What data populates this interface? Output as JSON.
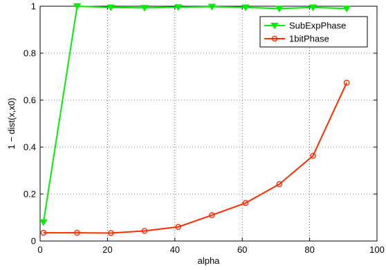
{
  "chart_data": {
    "type": "line",
    "xlabel": "alpha",
    "ylabel": "1 − dist(x,x0)",
    "xlim": [
      0,
      100
    ],
    "ylim": [
      0,
      1
    ],
    "xticks": [
      0,
      20,
      40,
      60,
      80,
      100
    ],
    "yticks": [
      0,
      0.2,
      0.4,
      0.6,
      0.8,
      1
    ],
    "xtick_labels": [
      "0",
      "20",
      "40",
      "60",
      "80",
      "100"
    ],
    "ytick_labels": [
      "0",
      "0.2",
      "0.4",
      "0.6",
      "0.8",
      "1"
    ],
    "grid": true,
    "legend_position": "top-right",
    "x": [
      1,
      11,
      21,
      31,
      41,
      51,
      61,
      71,
      81,
      91
    ],
    "series": [
      {
        "name": "SubExpPhase",
        "color": "#00ee00",
        "marker": "triangle-down",
        "values": [
          0.08,
          1.0,
          0.995,
          0.993,
          0.996,
          0.998,
          0.995,
          0.99,
          0.995,
          0.99
        ]
      },
      {
        "name": "1bitPhase",
        "color": "#ff2a00",
        "marker": "circle",
        "values": [
          0.035,
          0.035,
          0.034,
          0.043,
          0.06,
          0.11,
          0.162,
          0.242,
          0.363,
          0.674
        ]
      }
    ]
  }
}
